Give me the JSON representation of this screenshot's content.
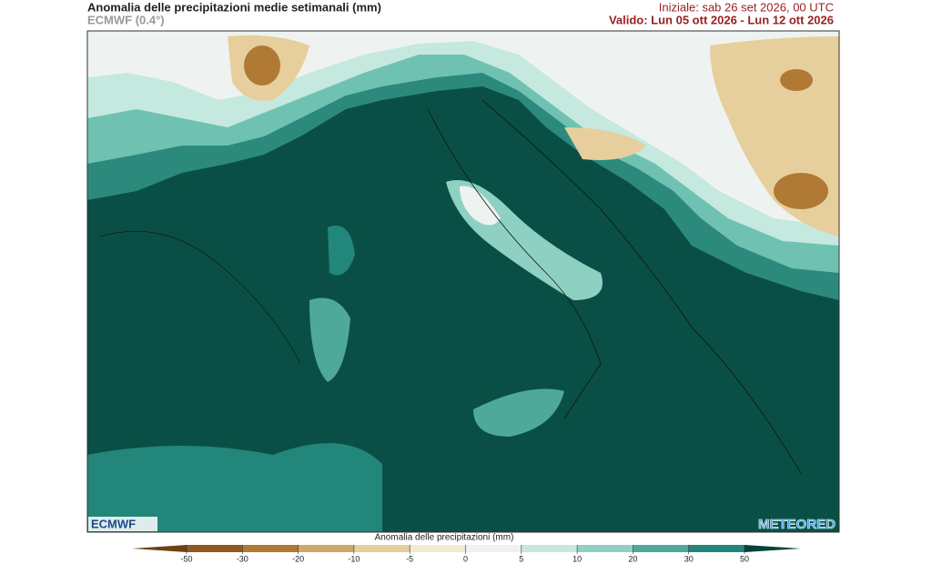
{
  "header": {
    "title": "Anomalia delle precipitazioni medie setimanali (mm)",
    "model": "ECMWF (0.4°)",
    "init": "Iniziale:  sab 26 set 2026, 00 UTC",
    "valid": "Valido: Lun 05 ott 2026 - Lun 12 ott 2026"
  },
  "logos": {
    "left": "ECMWF",
    "right": "METEORED"
  },
  "colorbar": {
    "label": "Anomalia delle precipitazioni (mm)",
    "ticks": [
      -50,
      -30,
      -20,
      -10,
      -5,
      0,
      5,
      10,
      20,
      30,
      50
    ],
    "colors": [
      "#6e4212",
      "#8f5a1c",
      "#b07a34",
      "#d0a866",
      "#e6cf9c",
      "#f4ead2",
      "#eef3f1",
      "#c5e9df",
      "#8ed1c2",
      "#4ea99a",
      "#22867a",
      "#0c5f53",
      "#054338"
    ]
  }
}
